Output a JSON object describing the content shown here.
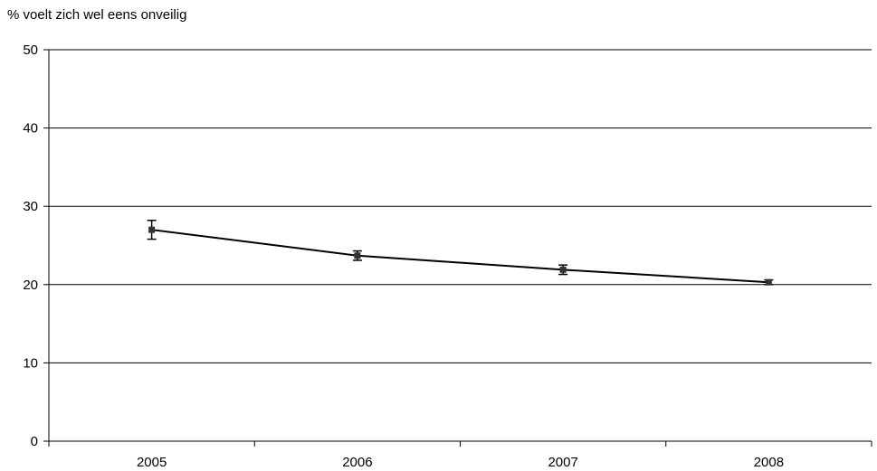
{
  "chart_data": {
    "type": "line",
    "title": "",
    "ylabel": "% voelt zich wel eens onveilig",
    "xlabel": "",
    "categories": [
      "2005",
      "2006",
      "2007",
      "2008"
    ],
    "series": [
      {
        "values": [
          27.0,
          23.7,
          21.9,
          20.3
        ],
        "error_low": [
          25.8,
          23.1,
          21.3,
          20.0
        ],
        "error_high": [
          28.2,
          24.3,
          22.5,
          20.6
        ],
        "color": "#000000"
      }
    ],
    "ylim": [
      0,
      50
    ],
    "yticks": [
      "0",
      "10",
      "20",
      "30",
      "40",
      "50"
    ],
    "grid": true
  }
}
